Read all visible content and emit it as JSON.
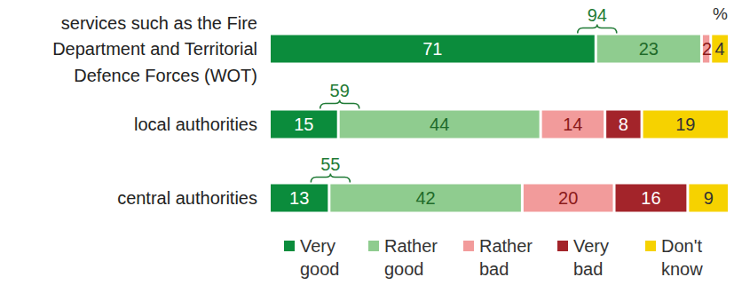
{
  "chart_data": {
    "type": "bar",
    "orientation": "horizontal",
    "stacked": true,
    "data_labels": true,
    "tick_labels": false,
    "unit": "%",
    "xlim": [
      0,
      100
    ],
    "categories": [
      "services such as the Fire Department and Territorial Defence Forces (WOT)",
      "local authorities",
      "central authorities"
    ],
    "series": [
      {
        "name": "Very good",
        "color": "#0b8c3c",
        "values": [
          71,
          15,
          13
        ]
      },
      {
        "name": "Rather good",
        "color": "#8fcc8f",
        "values": [
          23,
          44,
          42
        ]
      },
      {
        "name": "Rather bad",
        "color": "#f29b9b",
        "values": [
          2,
          14,
          20
        ]
      },
      {
        "name": "Very bad",
        "color": "#a3242a",
        "values": [
          0,
          8,
          16
        ]
      },
      {
        "name": "Don't know",
        "color": "#f6d200",
        "values": [
          4,
          19,
          9
        ]
      }
    ],
    "positive_totals": [
      94,
      59,
      55
    ]
  }
}
